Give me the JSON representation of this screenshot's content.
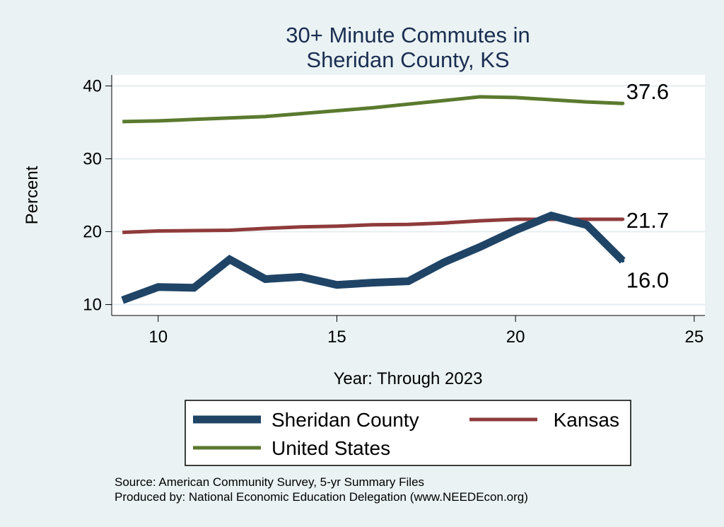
{
  "chart_data": {
    "type": "line",
    "title": [
      "30+ Minute Commutes in",
      "Sheridan County, KS"
    ],
    "xlabel": "Year: Through 2023",
    "ylabel": "Percent",
    "xlim": [
      8.7,
      25.3
    ],
    "ylim": [
      8.5,
      41.5
    ],
    "xticks": [
      10,
      15,
      20,
      25
    ],
    "yticks": [
      10,
      20,
      30,
      40
    ],
    "grid": true,
    "legend_position": "bottom",
    "series": [
      {
        "name": "United States",
        "color": "#5a7a2e",
        "x": [
          9,
          10,
          11,
          12,
          13,
          14,
          15,
          16,
          17,
          18,
          19,
          20,
          21,
          22,
          23
        ],
        "y": [
          35.1,
          35.2,
          35.4,
          35.6,
          35.8,
          36.2,
          36.6,
          37.0,
          37.5,
          38.0,
          38.5,
          38.4,
          38.1,
          37.8,
          37.6
        ],
        "end_label": "37.6"
      },
      {
        "name": "Kansas",
        "color": "#8f3b3b",
        "x": [
          9,
          10,
          11,
          12,
          13,
          14,
          15,
          16,
          17,
          18,
          19,
          20,
          21,
          22,
          23
        ],
        "y": [
          19.9,
          20.1,
          20.15,
          20.2,
          20.45,
          20.65,
          20.75,
          20.95,
          21.0,
          21.2,
          21.5,
          21.7,
          21.7,
          21.7,
          21.7
        ],
        "end_label": "21.7"
      },
      {
        "name": "Sheridan County",
        "color": "#1f4466",
        "x": [
          9,
          10,
          11,
          12,
          13,
          14,
          15,
          16,
          17,
          18,
          19,
          20,
          21,
          22,
          23
        ],
        "y": [
          10.6,
          12.4,
          12.3,
          16.2,
          13.5,
          13.8,
          12.7,
          13.0,
          13.2,
          15.8,
          17.9,
          20.2,
          22.2,
          20.9,
          16.0
        ],
        "end_label": "16.0"
      }
    ]
  },
  "legend": {
    "items": [
      {
        "label": "Sheridan County",
        "color": "#1f4466",
        "thick": true
      },
      {
        "label": "Kansas",
        "color": "#8f3b3b",
        "thick": false
      },
      {
        "label": "United States",
        "color": "#5a7a2e",
        "thick": false
      }
    ]
  },
  "notes": {
    "source": "Source: American Community Survey, 5-yr Summary Files",
    "produced": "Produced by: National Economic Education Delegation (www.NEEDEcon.org)"
  }
}
